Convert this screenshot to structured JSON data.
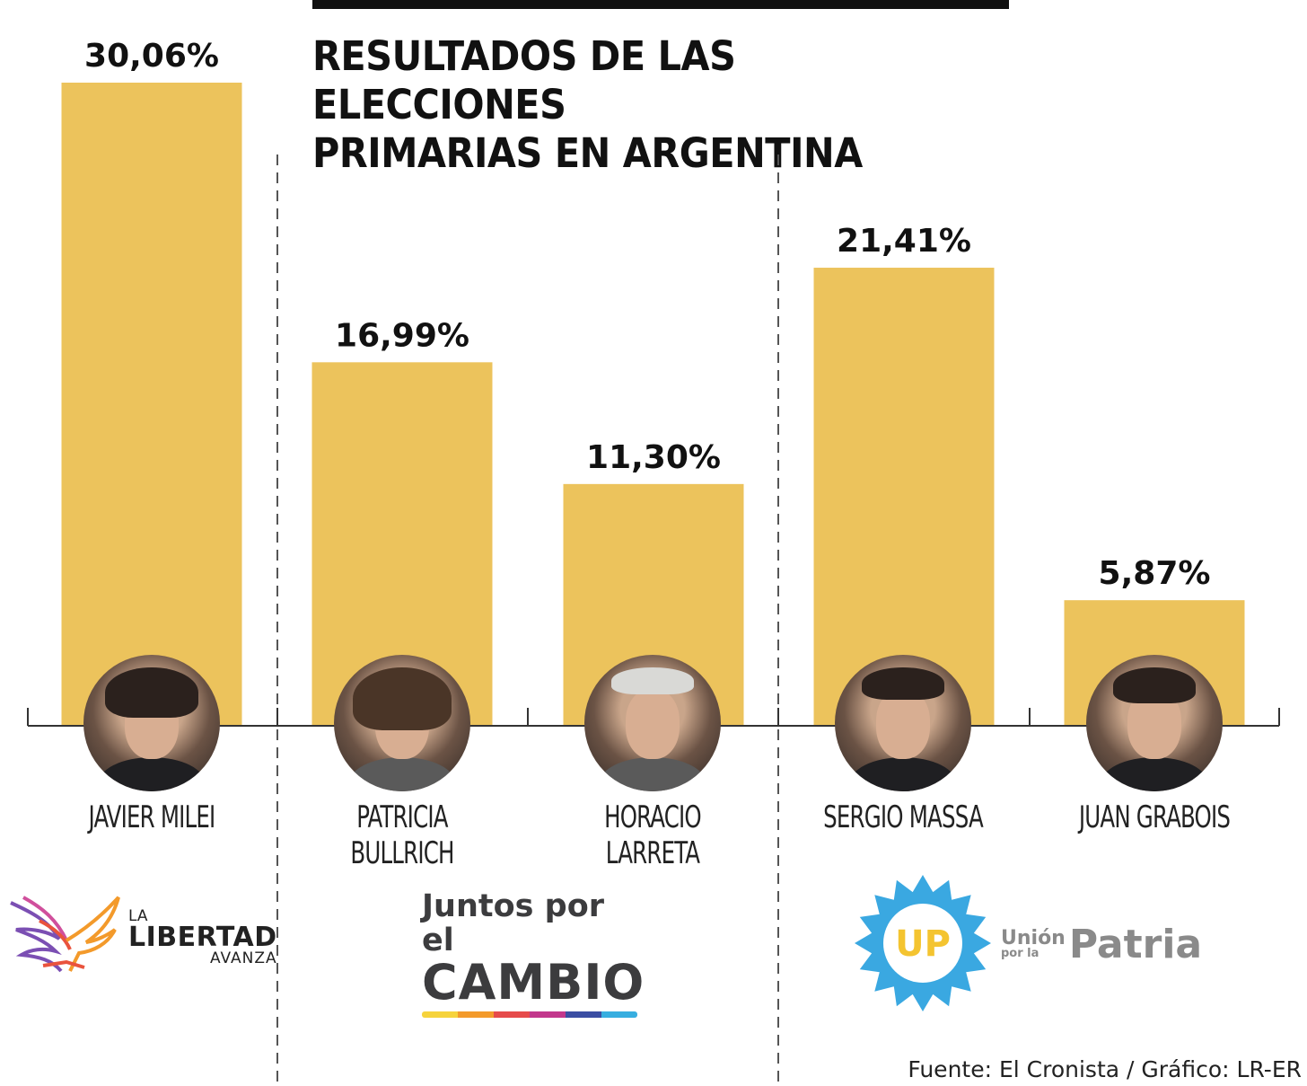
{
  "title_lines": [
    "RESULTADOS DE LAS ELECCIONES",
    "PRIMARIAS EN ARGENTINA"
  ],
  "source": "Fuente: El Cronista / Gráfico: LR-ER",
  "colors": {
    "bar": "#ecc35c",
    "axis": "#333333",
    "divider": "#555555"
  },
  "chart_data": {
    "type": "bar",
    "title": "RESULTADOS DE LAS ELECCIONES PRIMARIAS EN ARGENTINA",
    "xlabel": "",
    "ylabel": "",
    "categories": [
      "JAVIER MILEI",
      "PATRICIA BULLRICH",
      "HORACIO LARRETA",
      "SERGIO MASSA",
      "JUAN GRABOIS"
    ],
    "values": [
      30.06,
      16.99,
      11.3,
      21.41,
      5.87
    ],
    "value_labels": [
      "30,06%",
      "16,99%",
      "11,30%",
      "21,41%",
      "5,87%"
    ],
    "ylim": [
      0,
      30.06
    ],
    "grid": false,
    "groups": [
      {
        "party": "La Libertad Avanza",
        "members": [
          "JAVIER MILEI"
        ]
      },
      {
        "party": "Juntos por el Cambio",
        "members": [
          "PATRICIA BULLRICH",
          "HORACIO LARRETA"
        ]
      },
      {
        "party": "Unión por la Patria",
        "members": [
          "SERGIO MASSA",
          "JUAN GRABOIS"
        ]
      }
    ]
  },
  "logos": {
    "lla": {
      "la": "LA",
      "libertad": "LIBERTAD",
      "avanza": "AVANZA",
      "icon": "eagle-icon"
    },
    "jxc": {
      "line1": "Juntos por el",
      "line2": "CAMBIO",
      "stripe_colors": [
        "#f6d33c",
        "#f39a2b",
        "#e64b4b",
        "#c2378c",
        "#3b4ea3",
        "#37aee0"
      ]
    },
    "up": {
      "badge": "UP",
      "union": "Unión",
      "por_la": "por la",
      "patria": "Patria",
      "star_color": "#3aa8e1",
      "badge_color": "#f4c430"
    }
  }
}
